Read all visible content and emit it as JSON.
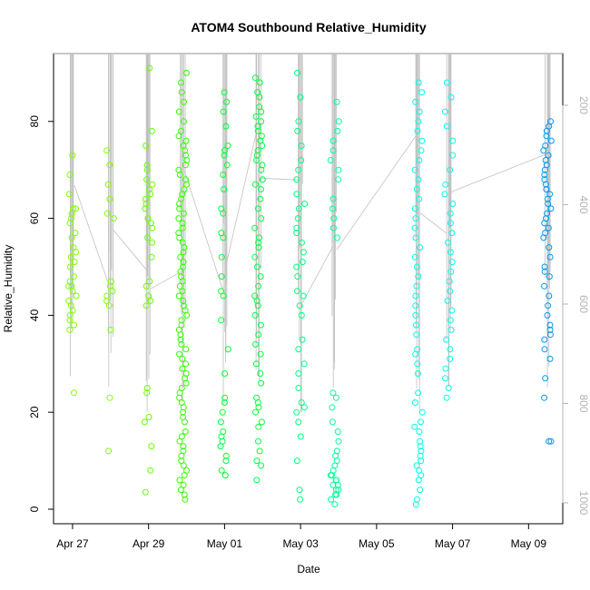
{
  "chart_data": {
    "type": "scatter",
    "title": "ATOM4 Southbound Relative_Humidity",
    "xlabel": "Date",
    "ylabel": "Relative_Humidity",
    "x_ticks": [
      "Apr 27",
      "Apr 29",
      "May 01",
      "May 03",
      "May 05",
      "May 07",
      "May 09"
    ],
    "x_tick_days": [
      27,
      29,
      31,
      33,
      35,
      37,
      39
    ],
    "xlim_days": [
      26.5,
      39.9
    ],
    "y_ticks": [
      0,
      20,
      40,
      60,
      80
    ],
    "ylim": [
      -3,
      94
    ],
    "right_axis": {
      "ticks": [
        200,
        400,
        600,
        800,
        1000
      ],
      "range": [
        96,
        1042
      ],
      "reversed": true,
      "color": "#b3b3b3"
    },
    "grid": false,
    "groups": [
      {
        "x": 27.0,
        "color": "#7fff00",
        "values": [
          24,
          37,
          38,
          39,
          40,
          41,
          42,
          43,
          44,
          45,
          46,
          46,
          47,
          48,
          50,
          51,
          52,
          53,
          54,
          56,
          57,
          59,
          60,
          61,
          62,
          62,
          65,
          69,
          73
        ]
      },
      {
        "x": 28.0,
        "color": "#7fff00",
        "values": [
          12,
          23,
          37,
          42,
          43,
          44,
          45,
          46,
          47,
          60,
          61,
          64,
          67,
          71,
          74
        ]
      },
      {
        "x": 29.0,
        "color": "#66ff00",
        "values": [
          3.5,
          8,
          13,
          18,
          19,
          24,
          25,
          42,
          43,
          44,
          46,
          47,
          52,
          55,
          56,
          58,
          59,
          60,
          62,
          63,
          64,
          65,
          66,
          67,
          68,
          70,
          71,
          75,
          78,
          91
        ]
      },
      {
        "x": 29.9,
        "color": "#33ff00",
        "values": [
          2,
          3,
          4,
          5,
          6,
          7,
          8,
          9,
          10,
          11,
          12,
          13,
          14,
          15,
          16,
          18,
          19,
          20,
          21,
          22,
          23,
          24,
          25,
          26,
          27,
          28,
          29,
          30,
          31,
          32,
          33,
          34,
          35,
          36,
          37,
          38,
          39,
          40,
          41,
          42,
          43,
          44,
          45,
          46,
          47,
          48,
          49,
          50,
          51,
          52,
          53,
          54,
          55,
          56,
          57,
          58,
          59,
          60,
          61,
          62,
          63,
          64,
          65,
          66,
          67,
          68,
          69,
          70,
          71,
          72,
          73,
          74,
          75,
          76,
          77,
          78,
          80,
          82,
          84,
          86,
          88,
          90
        ]
      },
      {
        "x": 31.0,
        "color": "#00ff33",
        "values": [
          7,
          8,
          10,
          11,
          13,
          14,
          15,
          16,
          18,
          20,
          22,
          23,
          28,
          33,
          39,
          44,
          45,
          48,
          52,
          56,
          57,
          61,
          62,
          66,
          69,
          71,
          73,
          74,
          75,
          79,
          82,
          84,
          86
        ]
      },
      {
        "x": 31.9,
        "color": "#00ff40",
        "values": [
          6,
          9,
          10,
          12,
          14,
          17,
          18,
          20,
          21,
          22,
          23,
          26,
          28,
          30,
          32,
          34,
          36,
          38,
          40,
          42,
          43,
          44,
          46,
          48,
          50,
          52,
          54,
          55,
          56,
          58,
          60,
          62,
          64,
          66,
          67,
          68,
          70,
          71,
          72,
          73,
          74,
          75,
          76,
          77,
          78,
          79,
          80,
          81,
          82,
          83,
          85,
          86,
          88,
          89
        ]
      },
      {
        "x": 33.0,
        "color": "#00ff80",
        "values": [
          2,
          4,
          10,
          15,
          18,
          20,
          21,
          22,
          25,
          28,
          30,
          33,
          35,
          40,
          42,
          44,
          45,
          48,
          50,
          51,
          53,
          55,
          57,
          58,
          60,
          62,
          63,
          65,
          68,
          70,
          72,
          75,
          78,
          80,
          85,
          90
        ]
      },
      {
        "x": 33.9,
        "color": "#00ff99",
        "values": [
          1,
          2,
          3,
          3,
          4,
          4,
          5,
          5,
          6,
          6,
          7,
          7,
          8,
          9,
          10,
          11,
          12,
          14,
          16,
          18,
          21,
          23,
          24,
          56,
          58,
          60,
          62,
          64,
          68,
          70,
          72,
          74,
          76,
          78,
          80,
          84
        ]
      },
      {
        "x": 36.1,
        "color": "#00ffe6",
        "values": [
          1,
          2,
          4,
          6,
          7,
          8,
          9,
          10,
          11,
          12,
          13,
          14,
          16,
          17,
          18,
          20,
          22,
          24,
          28,
          30,
          32,
          33,
          36,
          38,
          40,
          42,
          44,
          46,
          48,
          50,
          52,
          54,
          56,
          58,
          60,
          62,
          64,
          66,
          68,
          70,
          72,
          74,
          76,
          78,
          80,
          82,
          84,
          86,
          88
        ]
      },
      {
        "x": 36.9,
        "color": "#00ffee",
        "values": [
          23,
          25,
          27,
          29,
          31,
          33,
          35,
          37,
          39,
          41,
          43,
          45,
          47,
          49,
          51,
          53,
          55,
          57,
          59,
          61,
          63,
          65,
          67,
          70,
          73,
          76,
          79,
          82,
          85,
          88
        ]
      },
      {
        "x": 39.5,
        "color": "#0099ee",
        "values": [
          14,
          14,
          23,
          27,
          31,
          33,
          35,
          36,
          37,
          38,
          40,
          42,
          44,
          46,
          48,
          49,
          50,
          52,
          54,
          56,
          57,
          58,
          59,
          60,
          61,
          62,
          63,
          64,
          65,
          66,
          67,
          68,
          69,
          70,
          71,
          72,
          73,
          74,
          75,
          76,
          77,
          78,
          79,
          80
        ]
      }
    ],
    "trace_color": "#c0c0c0"
  }
}
